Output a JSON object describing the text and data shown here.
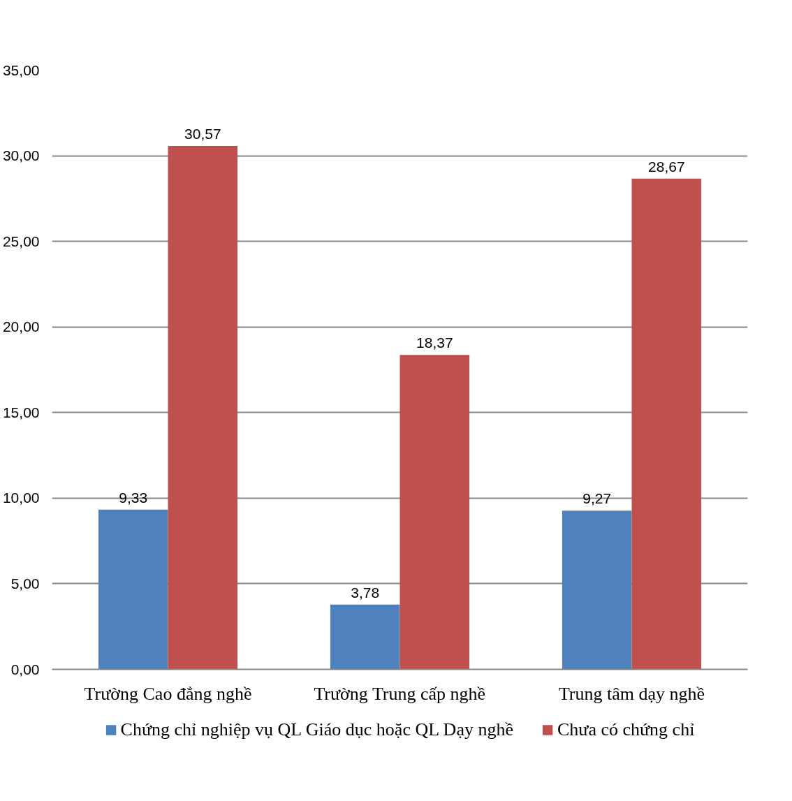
{
  "chart_data": {
    "type": "bar",
    "categories": [
      "Trường Cao đẳng nghề",
      "Trường Trung cấp nghề",
      "Trung tâm dạy nghề"
    ],
    "series": [
      {
        "name": "Chứng chỉ nghiệp vụ QL Giáo dục hoặc QL Dạy nghề",
        "color": "#4f81bd",
        "values": [
          9.33,
          3.78,
          9.27
        ],
        "value_labels": [
          "9,33",
          "3,78",
          "9,27"
        ]
      },
      {
        "name": "Chưa có chứng chỉ",
        "color": "#c0504d",
        "values": [
          30.57,
          18.37,
          28.67
        ],
        "value_labels": [
          "30,57",
          "18,37",
          "28,67"
        ]
      }
    ],
    "ylim": [
      0,
      35
    ],
    "yticks": [
      {
        "value": 0,
        "label": "0,00"
      },
      {
        "value": 5,
        "label": "5,00"
      },
      {
        "value": 10,
        "label": "10,00"
      },
      {
        "value": 15,
        "label": "15,00"
      },
      {
        "value": 20,
        "label": "20,00"
      },
      {
        "value": 25,
        "label": "25,00"
      },
      {
        "value": 30,
        "label": "30,00"
      },
      {
        "value": 35,
        "label": "35,00"
      }
    ],
    "grid": "y",
    "legend": "bottom"
  }
}
